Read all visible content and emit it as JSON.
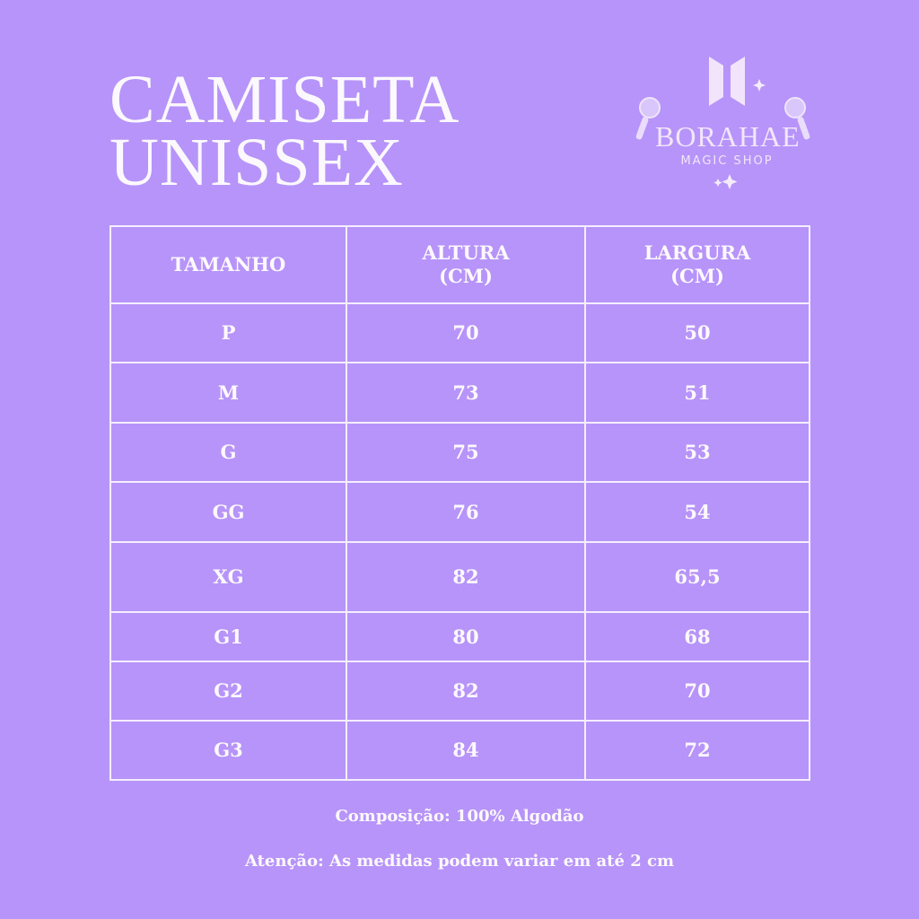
{
  "title": {
    "line1": "CAMISETA",
    "line2": "UNISSEX"
  },
  "logo": {
    "brand": "BORAHAE",
    "subtitle": "MAGIC SHOP"
  },
  "table": {
    "headers": [
      {
        "line1": "TAMANHO",
        "line2": ""
      },
      {
        "line1": "ALTURA",
        "line2": "(CM)"
      },
      {
        "line1": "LARGURA",
        "line2": "(CM)"
      }
    ],
    "rows": [
      [
        "P",
        "70",
        "50"
      ],
      [
        "M",
        "73",
        "51"
      ],
      [
        "G",
        "75",
        "53"
      ],
      [
        "GG",
        "76",
        "54"
      ],
      [
        "XG",
        "82",
        "65,5"
      ],
      [
        "G1",
        "80",
        "68"
      ],
      [
        "G2",
        "82",
        "70"
      ],
      [
        "G3",
        "84",
        "72"
      ]
    ]
  },
  "footer": {
    "composition": "Composição: 100% Algodão",
    "note": "Atenção: As medidas podem variar em até 2 cm"
  },
  "colors": {
    "background": "#b794f9",
    "text": "#fbf6ff"
  }
}
